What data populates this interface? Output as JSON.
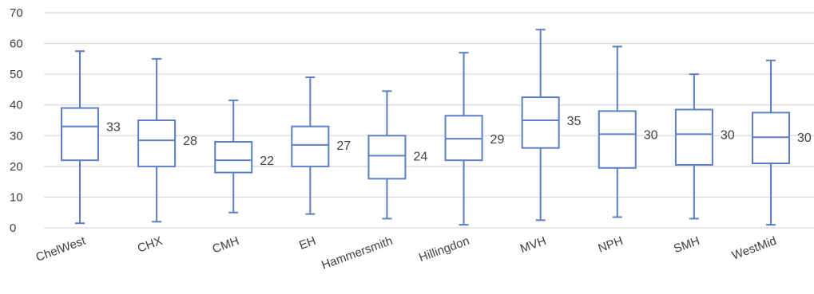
{
  "chart_data": {
    "type": "box",
    "title": "",
    "xlabel": "",
    "ylabel": "",
    "ylim": [
      0,
      70
    ],
    "yticks": [
      0,
      10,
      20,
      30,
      40,
      50,
      60,
      70
    ],
    "grid": true,
    "legend": "none",
    "colors": {
      "box": "#5b7fc7",
      "grid": "#d9d9d9",
      "text": "#404040"
    },
    "categories": [
      "ChelWest",
      "CHX",
      "CMH",
      "EH",
      "Hammersmith",
      "Hillingdon",
      "MVH",
      "NPH",
      "SMH",
      "WestMid"
    ],
    "boxes": [
      {
        "min": 1.5,
        "q1": 22,
        "median": 33,
        "q3": 39,
        "max": 57.5,
        "label": "33"
      },
      {
        "min": 2,
        "q1": 20,
        "median": 28.5,
        "q3": 35,
        "max": 55,
        "label": "28"
      },
      {
        "min": 5,
        "q1": 18,
        "median": 22,
        "q3": 28,
        "max": 41.5,
        "label": "22"
      },
      {
        "min": 4.5,
        "q1": 20,
        "median": 27,
        "q3": 33,
        "max": 49,
        "label": "27"
      },
      {
        "min": 3,
        "q1": 16,
        "median": 23.5,
        "q3": 30,
        "max": 44.5,
        "label": "24"
      },
      {
        "min": 1,
        "q1": 22,
        "median": 29,
        "q3": 36.5,
        "max": 57,
        "label": "29"
      },
      {
        "min": 2.5,
        "q1": 26,
        "median": 35,
        "q3": 42.5,
        "max": 64.5,
        "label": "35"
      },
      {
        "min": 3.5,
        "q1": 19.5,
        "median": 30.5,
        "q3": 38,
        "max": 59,
        "label": "30"
      },
      {
        "min": 3,
        "q1": 20.5,
        "median": 30.5,
        "q3": 38.5,
        "max": 50,
        "label": "30"
      },
      {
        "min": 1,
        "q1": 21,
        "median": 29.5,
        "q3": 37.5,
        "max": 54.5,
        "label": "30"
      }
    ]
  }
}
